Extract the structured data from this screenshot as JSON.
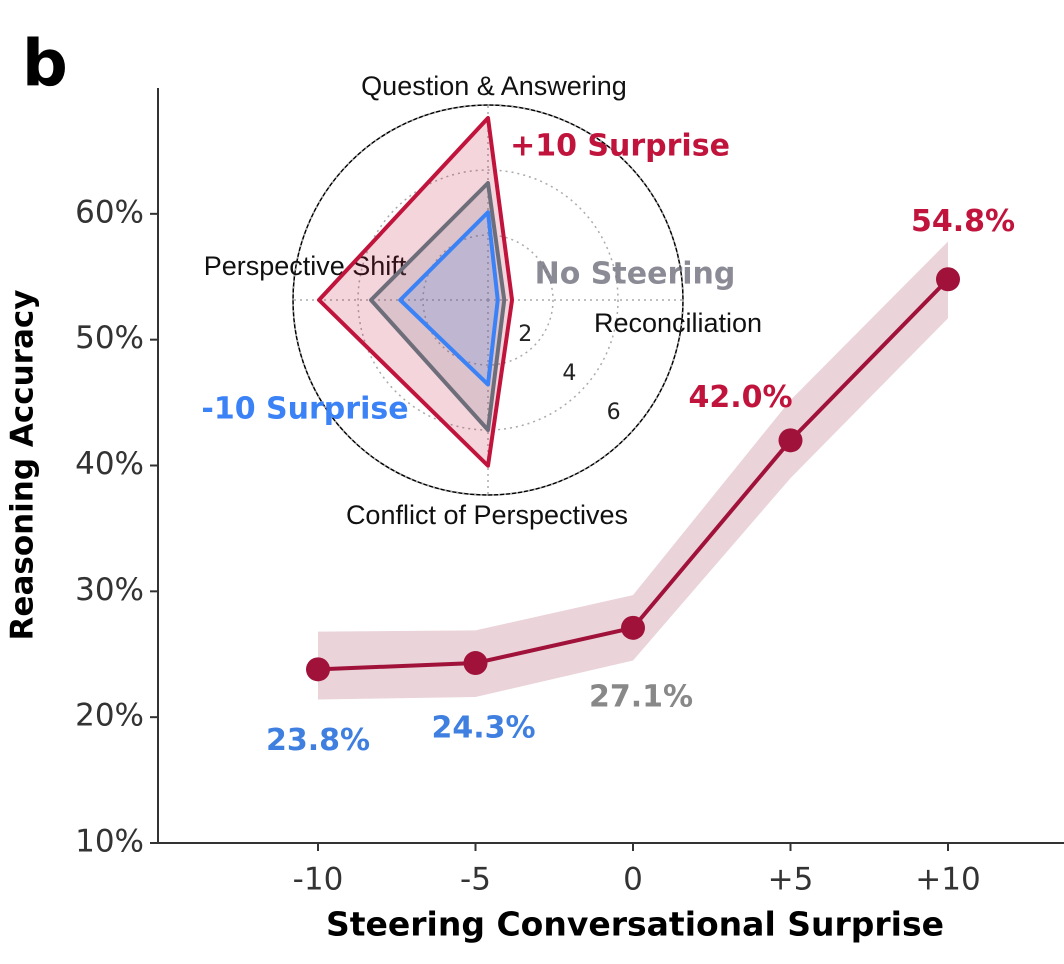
{
  "chart_data": [
    {
      "type": "line",
      "panel_label": "b",
      "y_label": "Reasoning Accuracy",
      "x_label": "Steering Conversational Surprise",
      "categories": [
        "-10",
        "-5",
        "0",
        "+5",
        "+10"
      ],
      "values": [
        23.8,
        24.3,
        27.1,
        42.0,
        54.8
      ],
      "value_labels": [
        "23.8%",
        "24.3%",
        "27.1%",
        "42.0%",
        "54.8%"
      ],
      "value_label_colors": [
        "#3f7fe0",
        "#3f7fe0",
        "#888888",
        "#c0143c",
        "#c0143c"
      ],
      "ci_lower": [
        21.4,
        21.6,
        24.5,
        39.0,
        51.7
      ],
      "ci_upper": [
        26.8,
        26.9,
        29.7,
        45.2,
        57.8
      ],
      "color": "#a0123a",
      "band_color": "#ead3d9",
      "ylim": [
        10,
        70
      ],
      "yticks": [
        {
          "value": 10,
          "label": "10%"
        },
        {
          "value": 20,
          "label": "20%"
        },
        {
          "value": 30,
          "label": "30%"
        },
        {
          "value": 40,
          "label": "40%"
        },
        {
          "value": 50,
          "label": "50%"
        },
        {
          "value": 60,
          "label": "60%"
        }
      ]
    },
    {
      "type": "radar",
      "axes": [
        "Question & Answering",
        "Reconciliation",
        "Conflict of Perspectives",
        "Perspective Shift"
      ],
      "rlim": [
        0,
        6
      ],
      "rticks": [
        2,
        4,
        6
      ],
      "series": [
        {
          "name": "+10 Surprise",
          "color": "#c0143c",
          "values": [
            5.6,
            0.74,
            5.1,
            5.2
          ]
        },
        {
          "name": "No Steering",
          "color": "#6e6e7a",
          "values": [
            3.6,
            0.5,
            4.0,
            3.6
          ]
        },
        {
          "name": "-10 Surprise",
          "color": "#3b82f6",
          "values": [
            2.7,
            0.3,
            2.6,
            2.7
          ]
        }
      ]
    }
  ]
}
